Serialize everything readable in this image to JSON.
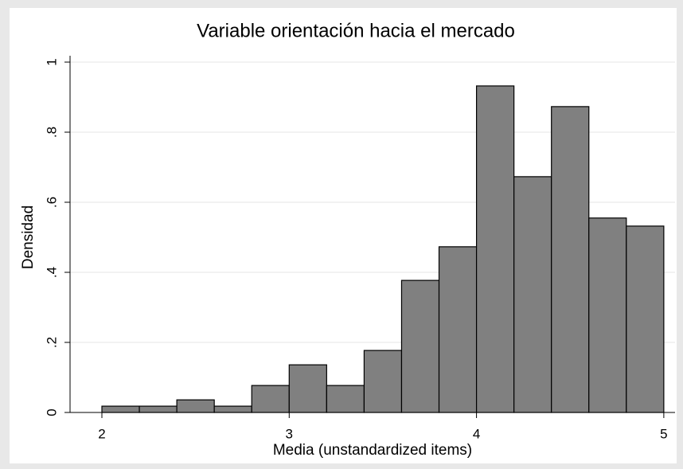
{
  "chart_data": {
    "type": "histogram",
    "title": "Variable orientación hacia el mercado",
    "x_label": "Media (unstandardized items)",
    "y_label": "Densidad",
    "bins": [
      2,
      2.2,
      2.4,
      2.6,
      2.8,
      3,
      3.2,
      3.4,
      3.6,
      3.8,
      4,
      4.2,
      4.4,
      4.6,
      4.8,
      5
    ],
    "values": [
      0.018,
      0.018,
      0.036,
      0.018,
      0.077,
      0.136,
      0.077,
      0.177,
      0.377,
      0.473,
      0.932,
      0.673,
      0.873,
      0.555,
      0.532
    ],
    "color": "#808080",
    "xlim": [
      1.83,
      5.06
    ],
    "xticks": [
      2,
      3,
      4,
      5
    ],
    "ylim": [
      0,
      1
    ],
    "yticks": [
      0,
      {
        "value": 0.2,
        "label": ".2"
      },
      {
        "value": 0.4,
        "label": ".4"
      },
      {
        "value": 0.6,
        "label": ".6"
      },
      {
        "value": 0.8,
        "label": ".8"
      },
      1
    ],
    "grid": true
  }
}
